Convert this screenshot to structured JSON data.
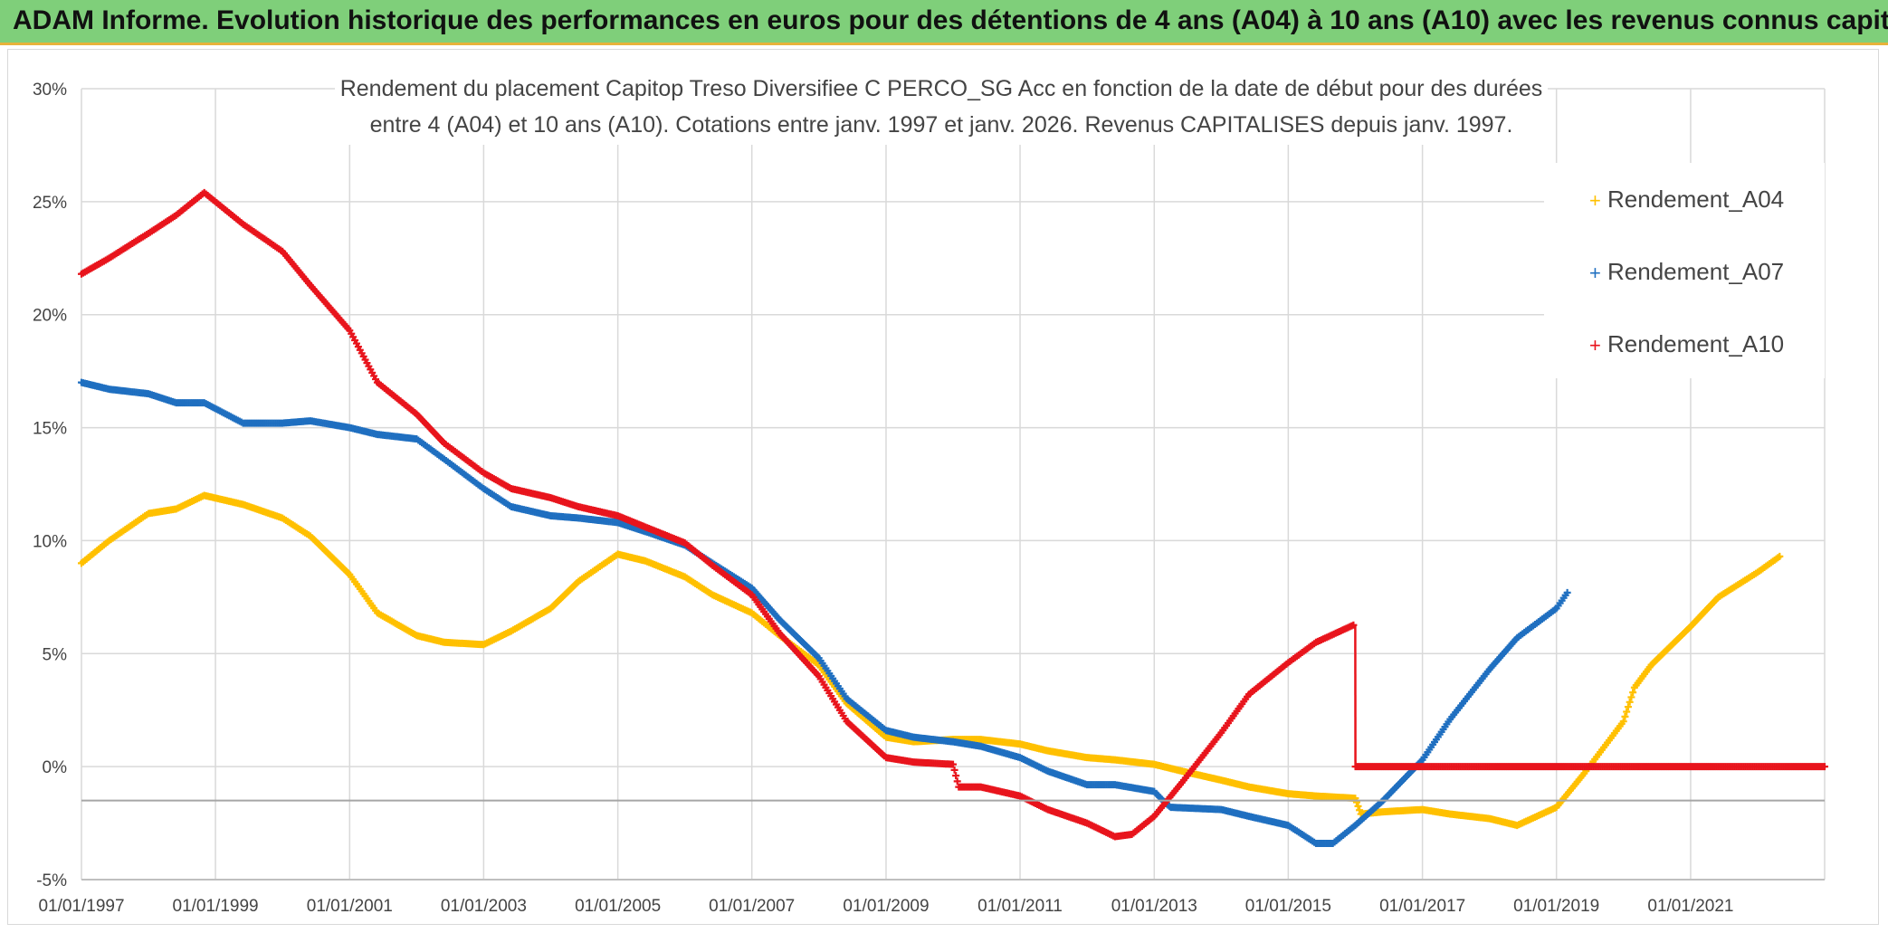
{
  "banner": {
    "title": "ADAM Informe. Evolution historique des performances en euros pour des détentions de 4 ans (A04) à 10 ans (A10) avec les revenus connus capitalisés"
  },
  "chart_data": {
    "type": "scatter",
    "title_line1": "Rendement du placement Capitop Treso Diversifiee C PERCO_SG Acc en fonction de la date de début pour des durées",
    "title_line2": "entre 4 (A04) et 10 ans (A10). Cotations entre janv. 1997 et janv. 2026. Revenus CAPITALISES depuis janv. 1997.",
    "xlabel": "",
    "ylabel": "",
    "x_tick_labels": [
      "01/01/1997",
      "01/01/1999",
      "01/01/2001",
      "01/01/2003",
      "01/01/2005",
      "01/01/2007",
      "01/01/2009",
      "01/01/2011",
      "01/01/2013",
      "01/01/2015",
      "01/01/2017",
      "01/01/2019",
      "01/01/2021"
    ],
    "y_tick_labels": [
      "30%",
      "25%",
      "20%",
      "15%",
      "10%",
      "5%",
      "0%",
      "-5%"
    ],
    "xlim": [
      "1997-01-01",
      "2023-01-01"
    ],
    "ylim": [
      -5,
      30
    ],
    "grid": true,
    "legend_position": "top-right",
    "series": [
      {
        "name": "Rendement_A04",
        "color": "#ffc000",
        "points": [
          [
            "1997-01-01",
            9.0
          ],
          [
            "1997-06-01",
            10.0
          ],
          [
            "1998-01-01",
            11.2
          ],
          [
            "1998-06-01",
            11.4
          ],
          [
            "1998-11-01",
            12.0
          ],
          [
            "1999-06-01",
            11.6
          ],
          [
            "2000-01-01",
            11.0
          ],
          [
            "2000-06-01",
            10.2
          ],
          [
            "2001-01-01",
            8.5
          ],
          [
            "2001-06-01",
            6.8
          ],
          [
            "2002-01-01",
            5.8
          ],
          [
            "2002-06-01",
            5.5
          ],
          [
            "2003-01-01",
            5.4
          ],
          [
            "2003-06-01",
            6.0
          ],
          [
            "2004-01-01",
            7.0
          ],
          [
            "2004-06-01",
            8.2
          ],
          [
            "2005-01-01",
            9.4
          ],
          [
            "2005-06-01",
            9.1
          ],
          [
            "2006-01-01",
            8.4
          ],
          [
            "2006-06-01",
            7.6
          ],
          [
            "2007-01-01",
            6.8
          ],
          [
            "2007-06-01",
            5.8
          ],
          [
            "2008-01-01",
            4.5
          ],
          [
            "2008-06-01",
            2.8
          ],
          [
            "2009-01-01",
            1.3
          ],
          [
            "2009-06-01",
            1.1
          ],
          [
            "2010-01-01",
            1.2
          ],
          [
            "2010-06-01",
            1.2
          ],
          [
            "2011-01-01",
            1.0
          ],
          [
            "2011-06-01",
            0.7
          ],
          [
            "2012-01-01",
            0.4
          ],
          [
            "2012-06-01",
            0.3
          ],
          [
            "2013-01-01",
            0.1
          ],
          [
            "2013-06-01",
            -0.2
          ],
          [
            "2014-01-01",
            -0.6
          ],
          [
            "2014-06-01",
            -0.9
          ],
          [
            "2015-01-01",
            -1.2
          ],
          [
            "2015-06-01",
            -1.3
          ],
          [
            "2016-01-01",
            -1.4
          ],
          [
            "2016-02-01",
            -2.1
          ],
          [
            "2016-06-01",
            -2.0
          ],
          [
            "2017-01-01",
            -1.9
          ],
          [
            "2017-06-01",
            -2.1
          ],
          [
            "2018-01-01",
            -2.3
          ],
          [
            "2018-06-01",
            -2.6
          ],
          [
            "2019-01-01",
            -1.8
          ],
          [
            "2019-06-01",
            -0.3
          ],
          [
            "2020-01-01",
            2.0
          ],
          [
            "2020-03-01",
            3.5
          ],
          [
            "2020-06-01",
            4.5
          ],
          [
            "2021-01-01",
            6.2
          ],
          [
            "2021-06-01",
            7.5
          ],
          [
            "2022-01-01",
            8.6
          ],
          [
            "2022-05-01",
            9.3
          ]
        ]
      },
      {
        "name": "Rendement_A07",
        "color": "#1f6fc0",
        "points": [
          [
            "1997-01-01",
            17.0
          ],
          [
            "1997-06-01",
            16.7
          ],
          [
            "1998-01-01",
            16.5
          ],
          [
            "1998-06-01",
            16.1
          ],
          [
            "1998-11-01",
            16.1
          ],
          [
            "1999-06-01",
            15.2
          ],
          [
            "2000-01-01",
            15.2
          ],
          [
            "2000-06-01",
            15.3
          ],
          [
            "2001-01-01",
            15.0
          ],
          [
            "2001-06-01",
            14.7
          ],
          [
            "2002-01-01",
            14.5
          ],
          [
            "2002-06-01",
            13.6
          ],
          [
            "2003-01-01",
            12.3
          ],
          [
            "2003-06-01",
            11.5
          ],
          [
            "2004-01-01",
            11.1
          ],
          [
            "2004-06-01",
            11.0
          ],
          [
            "2005-01-01",
            10.8
          ],
          [
            "2005-06-01",
            10.4
          ],
          [
            "2006-01-01",
            9.8
          ],
          [
            "2006-06-01",
            9.0
          ],
          [
            "2007-01-01",
            7.9
          ],
          [
            "2007-06-01",
            6.5
          ],
          [
            "2008-01-01",
            4.8
          ],
          [
            "2008-06-01",
            3.0
          ],
          [
            "2009-01-01",
            1.6
          ],
          [
            "2009-06-01",
            1.3
          ],
          [
            "2010-01-01",
            1.1
          ],
          [
            "2010-06-01",
            0.9
          ],
          [
            "2011-01-01",
            0.4
          ],
          [
            "2011-06-01",
            -0.2
          ],
          [
            "2012-01-01",
            -0.8
          ],
          [
            "2012-06-01",
            -0.8
          ],
          [
            "2013-01-01",
            -1.1
          ],
          [
            "2013-03-01",
            -1.6
          ],
          [
            "2013-04-01",
            -1.8
          ],
          [
            "2014-01-01",
            -1.9
          ],
          [
            "2014-06-01",
            -2.2
          ],
          [
            "2015-01-01",
            -2.6
          ],
          [
            "2015-06-01",
            -3.4
          ],
          [
            "2015-09-01",
            -3.4
          ],
          [
            "2016-01-01",
            -2.6
          ],
          [
            "2016-06-01",
            -1.5
          ],
          [
            "2017-01-01",
            0.3
          ],
          [
            "2017-06-01",
            2.1
          ],
          [
            "2018-01-01",
            4.3
          ],
          [
            "2018-06-01",
            5.7
          ],
          [
            "2019-01-01",
            7.0
          ],
          [
            "2019-03-01",
            7.7
          ]
        ]
      },
      {
        "name": "Rendement_A10",
        "color": "#e8141c",
        "points": [
          [
            "1997-01-01",
            21.8
          ],
          [
            "1997-06-01",
            22.5
          ],
          [
            "1998-01-01",
            23.6
          ],
          [
            "1998-06-01",
            24.4
          ],
          [
            "1998-11-01",
            25.4
          ],
          [
            "1999-06-01",
            24.0
          ],
          [
            "2000-01-01",
            22.8
          ],
          [
            "2000-06-01",
            21.3
          ],
          [
            "2001-01-01",
            19.3
          ],
          [
            "2001-06-01",
            17.0
          ],
          [
            "2002-01-01",
            15.6
          ],
          [
            "2002-06-01",
            14.3
          ],
          [
            "2003-01-01",
            13.0
          ],
          [
            "2003-06-01",
            12.3
          ],
          [
            "2004-01-01",
            11.9
          ],
          [
            "2004-06-01",
            11.5
          ],
          [
            "2005-01-01",
            11.1
          ],
          [
            "2005-06-01",
            10.6
          ],
          [
            "2006-01-01",
            9.9
          ],
          [
            "2006-06-01",
            8.9
          ],
          [
            "2007-01-01",
            7.6
          ],
          [
            "2007-06-01",
            5.9
          ],
          [
            "2008-01-01",
            4.0
          ],
          [
            "2008-06-01",
            2.0
          ],
          [
            "2009-01-01",
            0.4
          ],
          [
            "2009-06-01",
            0.2
          ],
          [
            "2010-01-01",
            0.1
          ],
          [
            "2010-02-01",
            -0.9
          ],
          [
            "2010-06-01",
            -0.9
          ],
          [
            "2011-01-01",
            -1.3
          ],
          [
            "2011-06-01",
            -1.9
          ],
          [
            "2012-01-01",
            -2.5
          ],
          [
            "2012-06-01",
            -3.1
          ],
          [
            "2012-09-01",
            -3.0
          ],
          [
            "2013-01-01",
            -2.2
          ],
          [
            "2013-06-01",
            -0.7
          ],
          [
            "2014-01-01",
            1.5
          ],
          [
            "2014-06-01",
            3.2
          ],
          [
            "2015-01-01",
            4.6
          ],
          [
            "2015-06-01",
            5.5
          ],
          [
            "2016-01-01",
            6.3
          ],
          [
            "2016-01-02",
            0.0
          ],
          [
            "2023-01-01",
            0.0
          ]
        ]
      }
    ]
  }
}
